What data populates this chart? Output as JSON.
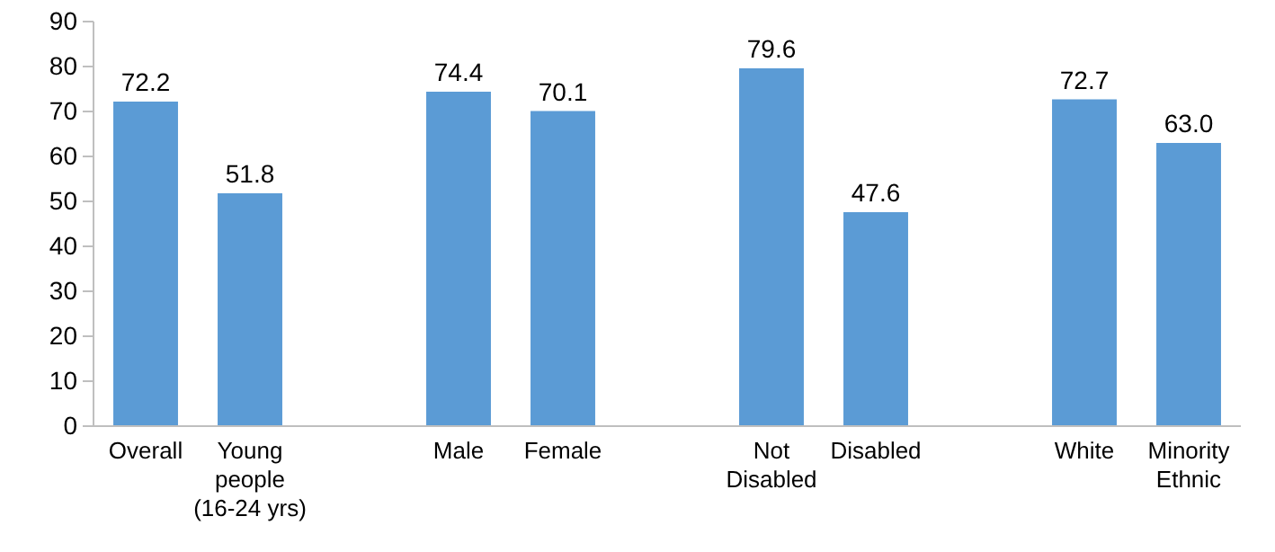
{
  "chart_data": {
    "type": "bar",
    "categories": [
      "Overall",
      "Young people (16-24 yrs)",
      null,
      "Male",
      "Female",
      null,
      "Not Disabled",
      "Disabled",
      null,
      "White",
      "Minority Ethnic"
    ],
    "values": [
      72.2,
      51.8,
      null,
      74.4,
      70.1,
      null,
      79.6,
      47.6,
      null,
      72.7,
      63.0
    ],
    "value_labels": [
      "72.2",
      "51.8",
      null,
      "74.4",
      "70.1",
      null,
      "79.6",
      "47.6",
      null,
      "72.7",
      "63.0"
    ],
    "color": "#5b9bd5",
    "ylim": [
      0,
      90
    ],
    "yticks": [
      0,
      10,
      20,
      30,
      40,
      50,
      60,
      70,
      80,
      90
    ],
    "grid": false
  }
}
